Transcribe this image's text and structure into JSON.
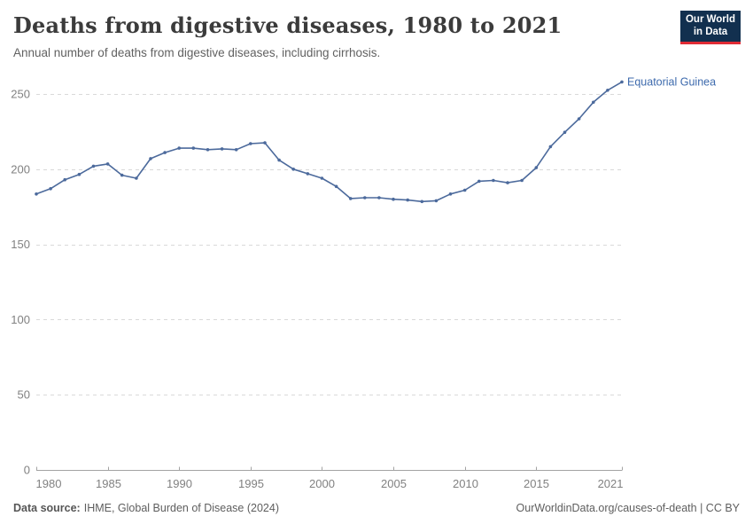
{
  "header": {
    "title": "Deaths from digestive diseases, 1980 to 2021",
    "subtitle": "Annual number of deaths from digestive diseases, including cirrhosis."
  },
  "logo": {
    "line1": "Our World",
    "line2": "in Data",
    "bg_color": "#12304f",
    "accent_color": "#e02b35"
  },
  "chart_data": {
    "type": "line",
    "title": "Deaths from digestive diseases, 1980 to 2021",
    "xlabel": "",
    "ylabel": "",
    "xlim": [
      1980,
      2021
    ],
    "ylim": [
      0,
      250
    ],
    "grid": "horizontal-dashed",
    "legend_position": "end-of-line-label",
    "x_ticks": [
      1980,
      1985,
      1990,
      1995,
      2000,
      2005,
      2010,
      2015,
      2021
    ],
    "y_ticks": [
      0,
      50,
      100,
      150,
      200,
      250
    ],
    "x": [
      1980,
      1981,
      1982,
      1983,
      1984,
      1985,
      1986,
      1987,
      1988,
      1989,
      1990,
      1991,
      1992,
      1993,
      1994,
      1995,
      1996,
      1997,
      1998,
      1999,
      2000,
      2001,
      2002,
      2003,
      2004,
      2005,
      2006,
      2007,
      2008,
      2009,
      2010,
      2011,
      2012,
      2013,
      2014,
      2015,
      2016,
      2017,
      2018,
      2019,
      2020,
      2021
    ],
    "series": [
      {
        "name": "Equatorial Guinea",
        "color": "#4c6a9c",
        "values": [
          183.5,
          187,
          193,
          196.5,
          202,
          203.5,
          196,
          194,
          207,
          211,
          214,
          214,
          213,
          213.5,
          213,
          217,
          217.5,
          206,
          200,
          197,
          194,
          188.5,
          180.5,
          181,
          181,
          180,
          179.5,
          178.5,
          179,
          183.5,
          186,
          192,
          192.5,
          191,
          192.5,
          201,
          215,
          224.5,
          233.5,
          244.5,
          252.5,
          258
        ]
      }
    ],
    "style": {
      "grid_color": "#d9d9d9",
      "axis_color": "#a3a3a3",
      "tick_label_color": "#818181",
      "end_label_color": "#3d6aad"
    }
  },
  "footer": {
    "datasource_label": "Data source:",
    "datasource_text": "IHME, Global Burden of Disease (2024)",
    "url": "OurWorldinData.org/causes-of-death",
    "divider": " | ",
    "license": "CC BY"
  }
}
